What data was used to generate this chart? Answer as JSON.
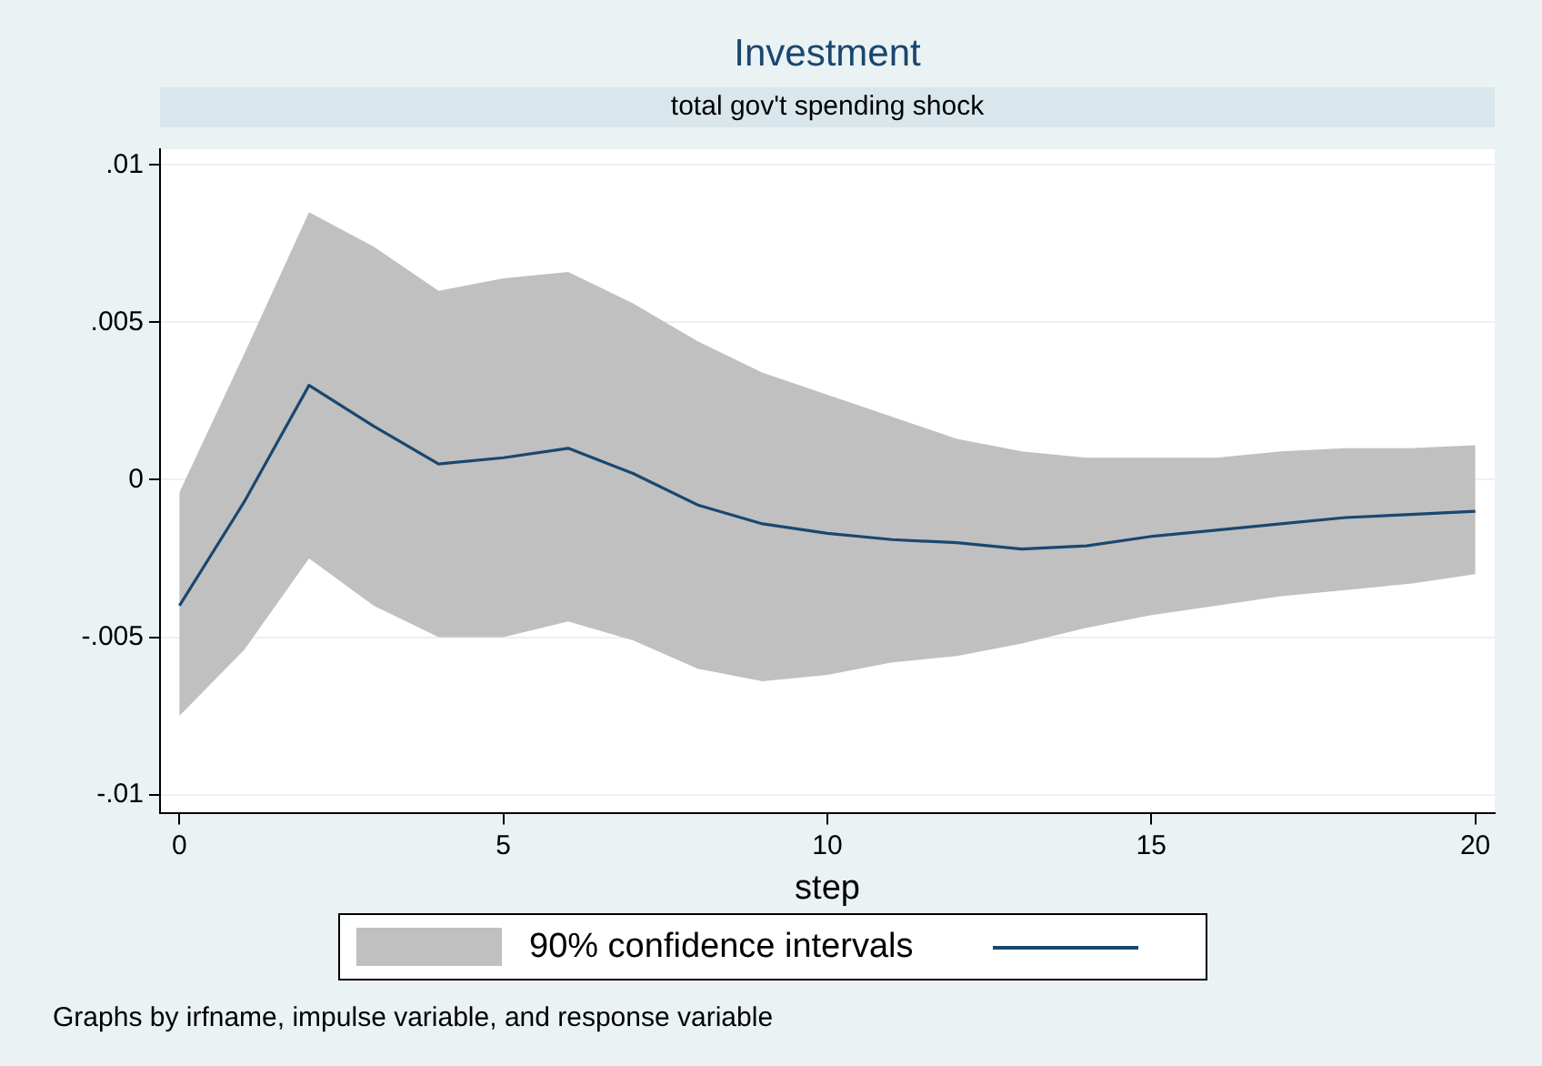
{
  "chart_data": {
    "type": "line",
    "title": "Investment",
    "subtitle": "total gov't spending shock",
    "xlabel": "step",
    "legend_title": "90% confidence intervals",
    "x": [
      0,
      1,
      2,
      3,
      4,
      5,
      6,
      7,
      8,
      9,
      10,
      11,
      12,
      13,
      14,
      15,
      16,
      17,
      18,
      19,
      20
    ],
    "series": [
      {
        "color": "#1a476f",
        "values": [
          -0.004,
          -0.0007,
          0.003,
          0.0017,
          0.0005,
          0.0007,
          0.001,
          0.0002,
          -0.0008,
          -0.0014,
          -0.0017,
          -0.0019,
          -0.002,
          -0.0022,
          -0.0021,
          -0.0018,
          -0.0016,
          -0.0014,
          -0.0012,
          -0.0011,
          -0.001
        ],
        "lower": [
          -0.0075,
          -0.0054,
          -0.0025,
          -0.004,
          -0.005,
          -0.005,
          -0.0045,
          -0.0051,
          -0.006,
          -0.0064,
          -0.0062,
          -0.0058,
          -0.0056,
          -0.0052,
          -0.0047,
          -0.0043,
          -0.004,
          -0.0037,
          -0.0035,
          -0.0033,
          -0.003
        ],
        "upper": [
          -0.0004,
          0.004,
          0.0085,
          0.0074,
          0.006,
          0.0064,
          0.0066,
          0.0056,
          0.0044,
          0.0034,
          0.0027,
          0.002,
          0.0013,
          0.0009,
          0.0007,
          0.0007,
          0.0007,
          0.0009,
          0.001,
          0.001,
          0.0011
        ]
      }
    ],
    "xlim": [
      -0.3,
      20.3
    ],
    "ylim": [
      -0.0106,
      0.0105
    ],
    "xticks": [
      0,
      5,
      10,
      15,
      20
    ],
    "yticks": [
      {
        "value": -0.01,
        "label": "-.01"
      },
      {
        "value": -0.005,
        "label": "-.005"
      },
      {
        "value": 0,
        "label": "0"
      },
      {
        "value": 0.005,
        "label": ".005"
      },
      {
        "value": 0.01,
        "label": ".01"
      }
    ],
    "grid": "y",
    "marker": "none",
    "line_style": "solid",
    "annotations": [
      "Graphs by irfname, impulse variable, and response variable"
    ]
  }
}
